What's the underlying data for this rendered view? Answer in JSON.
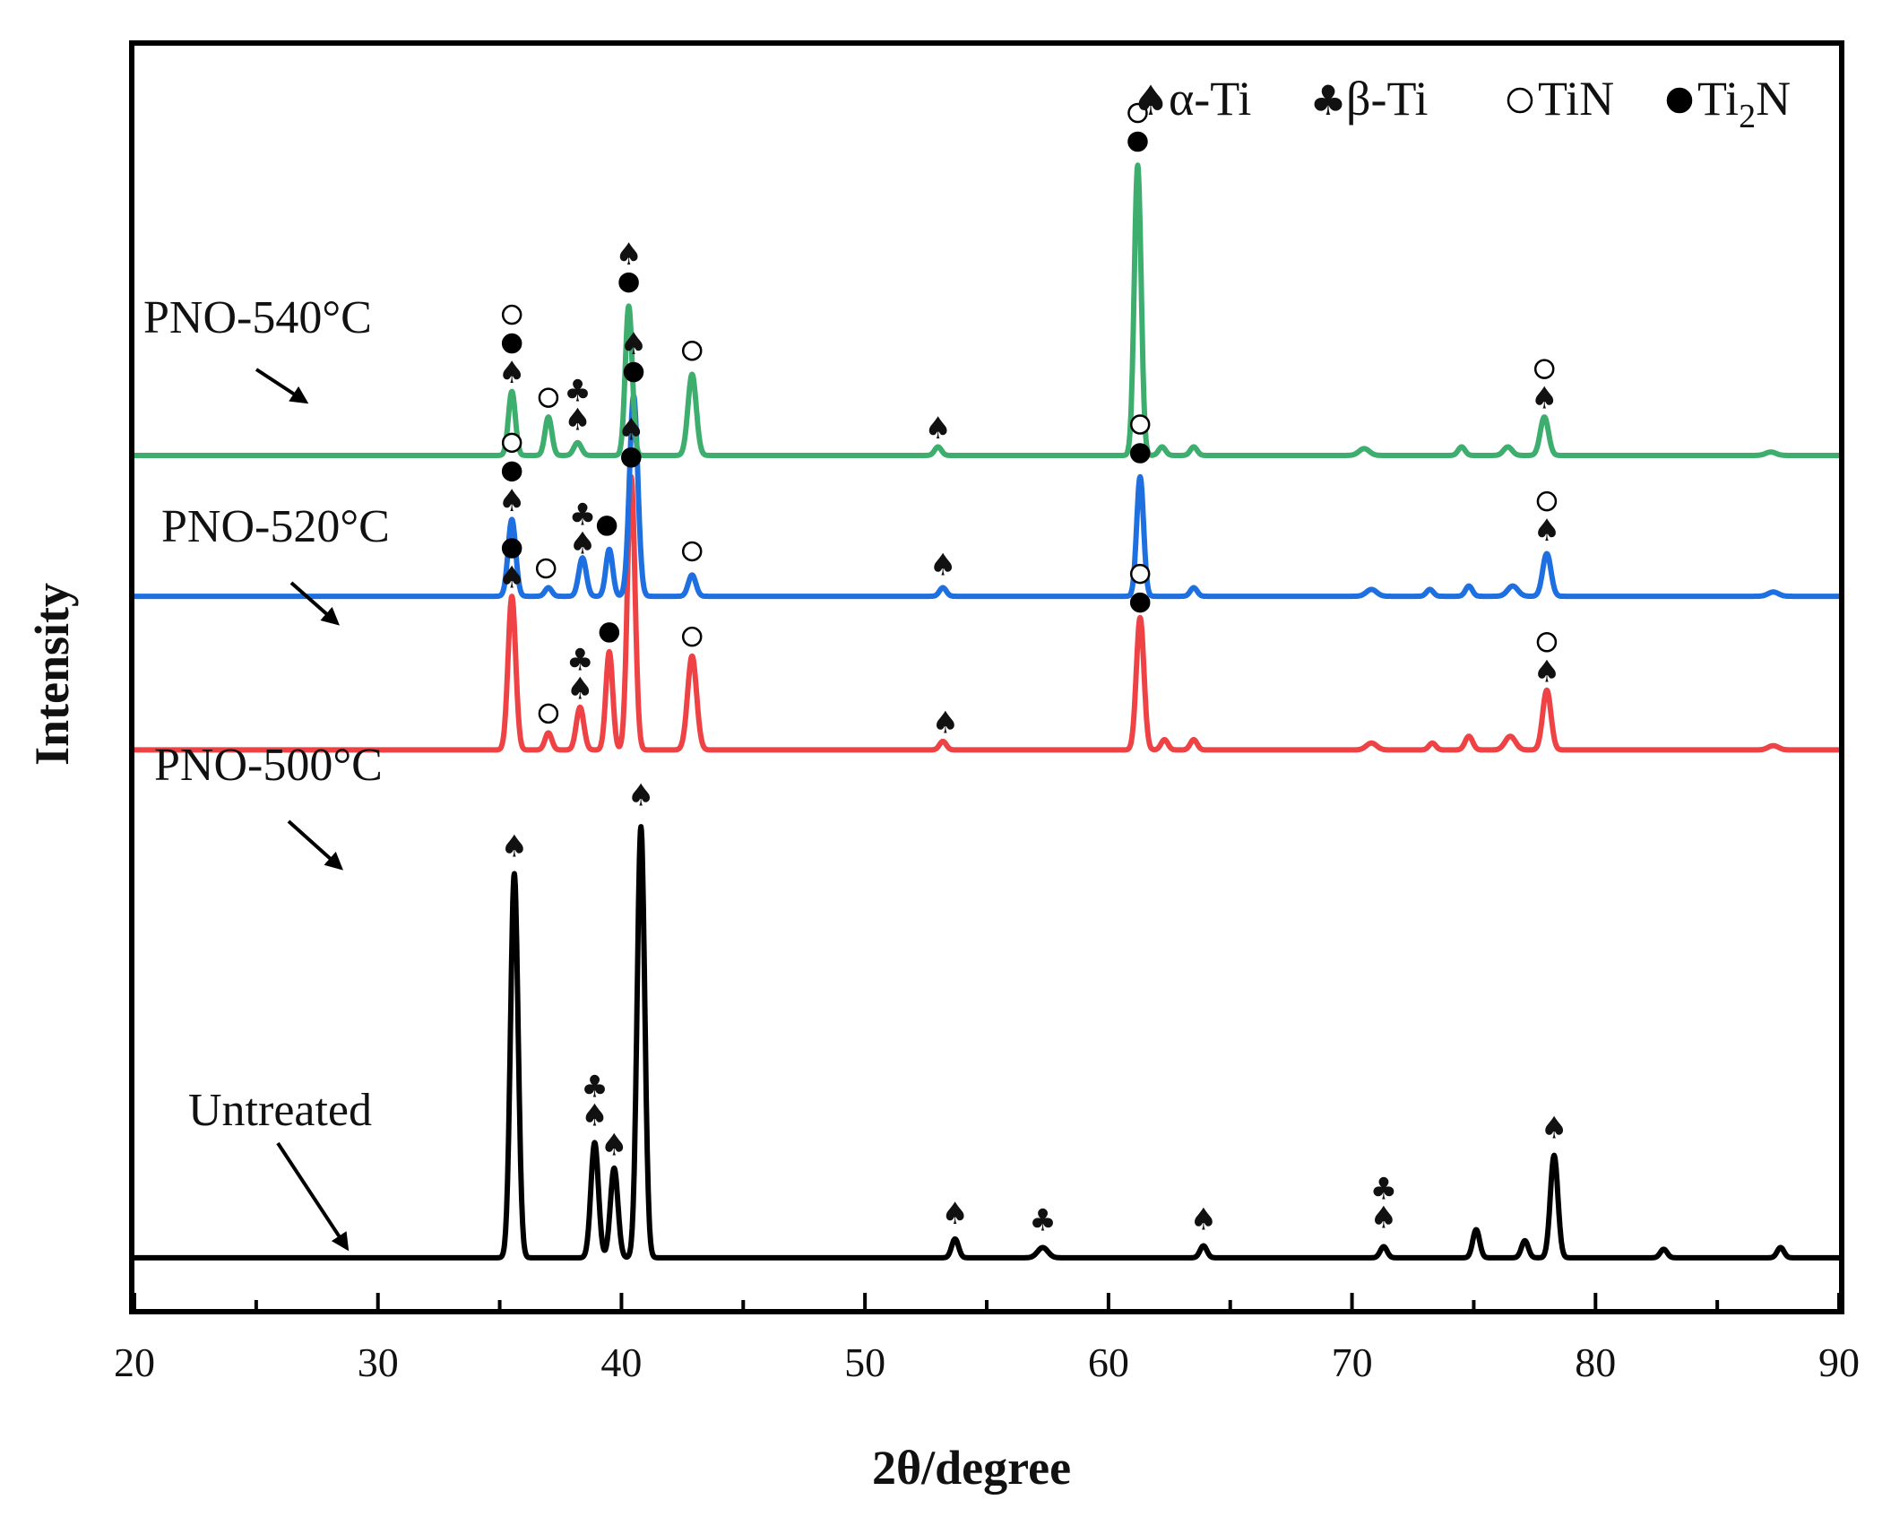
{
  "chart_data": {
    "type": "line",
    "title": "",
    "xlabel": "2θ/degree",
    "ylabel": "Intensity",
    "xlim": [
      20,
      90
    ],
    "ylim": [
      0,
      14.8
    ],
    "xticks": [
      20,
      30,
      40,
      50,
      60,
      70,
      80,
      90
    ],
    "xtick_labels": [
      "20",
      "30",
      "40",
      "50",
      "60",
      "70",
      "80",
      "90"
    ],
    "grid": false,
    "legend": {
      "position": "top-right",
      "items": [
        {
          "symbol": "♠",
          "filled": true,
          "label": "α-Ti"
        },
        {
          "symbol": "♣",
          "filled": true,
          "label": "β-Ti"
        },
        {
          "symbol": "○",
          "filled": false,
          "label": "TiN"
        },
        {
          "symbol": "●",
          "filled": true,
          "label": "Ti",
          "label_sub": "2",
          "label_tail": "N"
        }
      ]
    },
    "series": [
      {
        "name": "Untreated",
        "color": "#000000",
        "baseline": 0.6,
        "peaks": [
          [
            35.6,
            4.5,
            0.22
          ],
          [
            38.9,
            1.35,
            0.22
          ],
          [
            39.7,
            1.05,
            0.22
          ],
          [
            40.8,
            5.05,
            0.22
          ],
          [
            53.7,
            0.22,
            0.2
          ],
          [
            57.3,
            0.12,
            0.3
          ],
          [
            63.9,
            0.14,
            0.2
          ],
          [
            71.3,
            0.13,
            0.2
          ],
          [
            75.1,
            0.33,
            0.2
          ],
          [
            77.1,
            0.2,
            0.2
          ],
          [
            78.3,
            1.2,
            0.22
          ],
          [
            82.8,
            0.1,
            0.2
          ],
          [
            87.6,
            0.12,
            0.2
          ]
        ],
        "label": "Untreated",
        "markers": [
          {
            "x": 35.6,
            "y": 5.3,
            "symbols": [
              "♠"
            ]
          },
          {
            "x": 38.9,
            "y": 2.15,
            "symbols": [
              "♠",
              "♣"
            ]
          },
          {
            "x": 39.7,
            "y": 1.8,
            "symbols": [
              "♠"
            ]
          },
          {
            "x": 40.8,
            "y": 5.9,
            "symbols": [
              "♠"
            ]
          },
          {
            "x": 53.7,
            "y": 1.0,
            "symbols": [
              "♠"
            ]
          },
          {
            "x": 57.3,
            "y": 0.92,
            "symbols": [
              "♣"
            ]
          },
          {
            "x": 63.9,
            "y": 0.93,
            "symbols": [
              "♠"
            ]
          },
          {
            "x": 71.3,
            "y": 0.95,
            "symbols": [
              "♠",
              "♣"
            ]
          },
          {
            "x": 78.3,
            "y": 2.0,
            "symbols": [
              "♠"
            ]
          }
        ]
      },
      {
        "name": "PNO-500°C",
        "color": "#EE4245",
        "baseline": 6.55,
        "peaks": [
          [
            35.5,
            1.8,
            0.22
          ],
          [
            37.0,
            0.2,
            0.2
          ],
          [
            38.3,
            0.5,
            0.22
          ],
          [
            39.5,
            1.15,
            0.2
          ],
          [
            40.4,
            3.2,
            0.22
          ],
          [
            42.9,
            1.1,
            0.26
          ],
          [
            53.2,
            0.1,
            0.2
          ],
          [
            61.3,
            1.55,
            0.22
          ],
          [
            62.3,
            0.12,
            0.2
          ],
          [
            63.5,
            0.12,
            0.2
          ],
          [
            70.8,
            0.08,
            0.3
          ],
          [
            73.3,
            0.08,
            0.2
          ],
          [
            74.8,
            0.16,
            0.22
          ],
          [
            76.5,
            0.16,
            0.3
          ],
          [
            78.0,
            0.7,
            0.24
          ],
          [
            87.3,
            0.05,
            0.3
          ]
        ],
        "label": "PNO-500°C",
        "markers": [
          {
            "x": 35.5,
            "y": 8.45,
            "symbols": [
              "♠",
              "●"
            ]
          },
          {
            "x": 37.0,
            "y": 6.85,
            "symbols": [
              "○"
            ]
          },
          {
            "x": 38.3,
            "y": 7.15,
            "symbols": [
              "♠",
              "♣"
            ]
          },
          {
            "x": 39.5,
            "y": 7.8,
            "symbols": [
              "●"
            ]
          },
          {
            "x": 40.4,
            "y": 9.85,
            "symbols": [
              "●",
              "♠"
            ]
          },
          {
            "x": 42.9,
            "y": 7.75,
            "symbols": [
              "○"
            ]
          },
          {
            "x": 53.3,
            "y": 6.75,
            "symbols": [
              "♠"
            ]
          },
          {
            "x": 61.3,
            "y": 8.15,
            "symbols": [
              "●",
              "○"
            ]
          },
          {
            "x": 78.0,
            "y": 7.35,
            "symbols": [
              "♠",
              "○"
            ]
          }
        ]
      },
      {
        "name": "PNO-520°C",
        "color": "#1E6FE0",
        "baseline": 8.35,
        "peaks": [
          [
            35.5,
            0.9,
            0.22
          ],
          [
            37.0,
            0.1,
            0.2
          ],
          [
            38.4,
            0.45,
            0.22
          ],
          [
            39.5,
            0.55,
            0.2
          ],
          [
            40.5,
            2.35,
            0.24
          ],
          [
            42.9,
            0.25,
            0.22
          ],
          [
            53.2,
            0.1,
            0.2
          ],
          [
            61.3,
            1.4,
            0.2
          ],
          [
            63.5,
            0.1,
            0.2
          ],
          [
            70.8,
            0.08,
            0.3
          ],
          [
            73.2,
            0.08,
            0.2
          ],
          [
            74.8,
            0.12,
            0.2
          ],
          [
            76.6,
            0.12,
            0.3
          ],
          [
            78.0,
            0.5,
            0.24
          ],
          [
            87.3,
            0.05,
            0.3
          ]
        ],
        "label": "PNO-520°C",
        "markers": [
          {
            "x": 35.5,
            "y": 9.35,
            "symbols": [
              "♠",
              "●",
              "○"
            ]
          },
          {
            "x": 36.9,
            "y": 8.55,
            "symbols": [
              "○"
            ]
          },
          {
            "x": 38.4,
            "y": 8.85,
            "symbols": [
              "♠",
              "♣"
            ]
          },
          {
            "x": 39.4,
            "y": 9.05,
            "symbols": [
              "●"
            ]
          },
          {
            "x": 40.5,
            "y": 10.85,
            "symbols": [
              "●",
              "♠"
            ]
          },
          {
            "x": 42.9,
            "y": 8.75,
            "symbols": [
              "○"
            ]
          },
          {
            "x": 53.2,
            "y": 8.6,
            "symbols": [
              "♠"
            ]
          },
          {
            "x": 61.3,
            "y": 9.9,
            "symbols": [
              "●",
              "○"
            ]
          },
          {
            "x": 78.0,
            "y": 9.0,
            "symbols": [
              "♠",
              "○"
            ]
          }
        ]
      },
      {
        "name": "PNO-540°C",
        "color": "#3DAE6E",
        "baseline": 10.0,
        "peaks": [
          [
            35.5,
            0.75,
            0.2
          ],
          [
            37.0,
            0.45,
            0.2
          ],
          [
            38.2,
            0.15,
            0.22
          ],
          [
            40.3,
            1.75,
            0.2
          ],
          [
            42.9,
            0.95,
            0.24
          ],
          [
            53.0,
            0.1,
            0.2
          ],
          [
            61.2,
            3.4,
            0.2
          ],
          [
            62.2,
            0.1,
            0.2
          ],
          [
            63.5,
            0.1,
            0.2
          ],
          [
            70.5,
            0.08,
            0.3
          ],
          [
            74.5,
            0.1,
            0.2
          ],
          [
            76.4,
            0.1,
            0.25
          ],
          [
            77.9,
            0.45,
            0.24
          ],
          [
            87.2,
            0.04,
            0.3
          ]
        ],
        "label": "PNO-540°C",
        "markers": [
          {
            "x": 35.5,
            "y": 10.85,
            "symbols": [
              "♠",
              "●",
              "○"
            ]
          },
          {
            "x": 37.0,
            "y": 10.55,
            "symbols": [
              "○"
            ]
          },
          {
            "x": 38.2,
            "y": 10.3,
            "symbols": [
              "♠",
              "♣"
            ]
          },
          {
            "x": 40.3,
            "y": 11.9,
            "symbols": [
              "●",
              "♠"
            ]
          },
          {
            "x": 42.9,
            "y": 11.1,
            "symbols": [
              "○"
            ]
          },
          {
            "x": 53.0,
            "y": 10.2,
            "symbols": [
              "♠"
            ]
          },
          {
            "x": 61.2,
            "y": 13.55,
            "symbols": [
              "●",
              "○"
            ]
          },
          {
            "x": 77.9,
            "y": 10.55,
            "symbols": [
              "♠",
              "○"
            ]
          }
        ]
      }
    ]
  }
}
